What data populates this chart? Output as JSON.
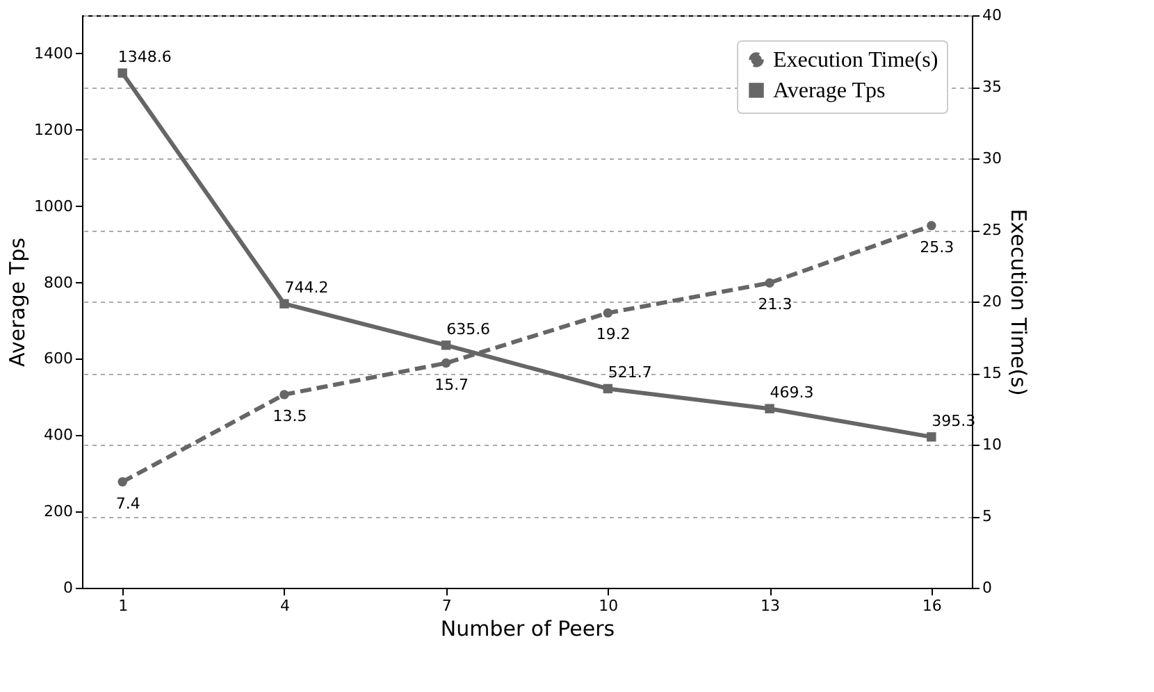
{
  "chart_data": {
    "type": "line",
    "xlabel": "Number of Peers",
    "ylabel": "Average Tps",
    "y2label": "Execution Time(s)",
    "x": [
      1,
      4,
      7,
      10,
      13,
      16
    ],
    "series": [
      {
        "name": "Execution Time(s)",
        "color": "#666666",
        "axis": "y2",
        "marker": "circle",
        "line_style": "dashed",
        "values": [
          7.4,
          13.5,
          15.7,
          19.2,
          21.3,
          25.3
        ]
      },
      {
        "name": "Average Tps",
        "color": "#666666",
        "marker": "square",
        "line_style": "solid",
        "values": [
          1348.6,
          744.2,
          635.6,
          521.7,
          469.3,
          395.3
        ]
      }
    ],
    "xlim": [
      0.25,
      16.75
    ],
    "xticks": [
      1,
      4,
      7,
      10,
      13,
      16
    ],
    "ylim": [
      0,
      1500
    ],
    "yticks": [
      0,
      200,
      400,
      600,
      800,
      1000,
      1200,
      1400
    ],
    "y2lim": [
      0,
      40
    ],
    "y2ticks": [
      0,
      5,
      10,
      15,
      20,
      25,
      30,
      35,
      40
    ],
    "grid": "y2",
    "legend": "top right",
    "data_labels": true
  }
}
